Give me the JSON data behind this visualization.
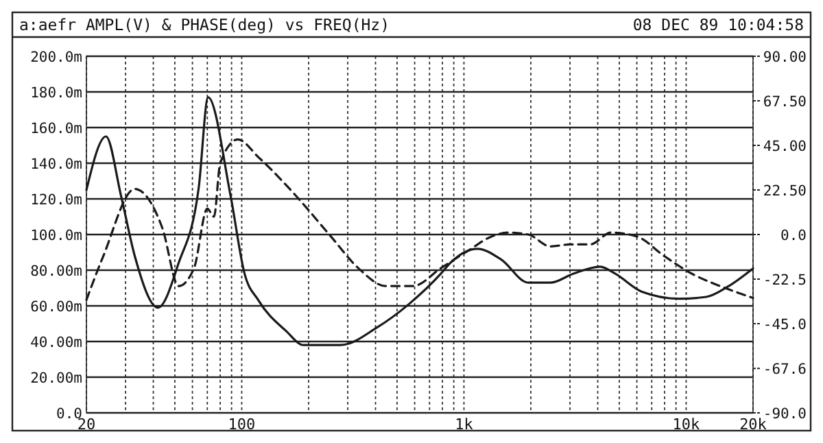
{
  "chart_data": {
    "type": "line",
    "title": "a:aefr AMPL(V) & PHASE(deg) vs FREQ(Hz)",
    "subtitle": "08 DEC 89 10:04:58",
    "log": "x",
    "grid": true,
    "marker": "none",
    "xlim": [
      20,
      20000
    ],
    "xticks": [
      {
        "value": 20,
        "label": "20"
      },
      {
        "value": 30,
        "label": null
      },
      {
        "value": 40,
        "label": null
      },
      {
        "value": 50,
        "label": null
      },
      {
        "value": 60,
        "label": null
      },
      {
        "value": 70,
        "label": null
      },
      {
        "value": 80,
        "label": null
      },
      {
        "value": 90,
        "label": null
      },
      100,
      {
        "value": 200,
        "label": null
      },
      {
        "value": 300,
        "label": null
      },
      {
        "value": 400,
        "label": null
      },
      {
        "value": 500,
        "label": null
      },
      {
        "value": 600,
        "label": null
      },
      {
        "value": 700,
        "label": null
      },
      {
        "value": 800,
        "label": null
      },
      {
        "value": 900,
        "label": null
      },
      {
        "value": 1000,
        "label": "1k"
      },
      {
        "value": 2000,
        "label": null
      },
      {
        "value": 3000,
        "label": null
      },
      {
        "value": 4000,
        "label": null
      },
      {
        "value": 5000,
        "label": null
      },
      {
        "value": 6000,
        "label": null
      },
      {
        "value": 7000,
        "label": null
      },
      {
        "value": 8000,
        "label": null
      },
      {
        "value": 9000,
        "label": null
      },
      {
        "value": 10000,
        "label": "10k"
      },
      {
        "value": 20000,
        "label": "20k"
      }
    ],
    "ylim": [
      0,
      200
    ],
    "yticks": [
      {
        "value": 0,
        "label": "0.0"
      },
      {
        "value": 20,
        "label": "20.00m"
      },
      {
        "value": 40,
        "label": "40.00m"
      },
      {
        "value": 60,
        "label": "60.00m"
      },
      {
        "value": 80,
        "label": "80.00m"
      },
      {
        "value": 100,
        "label": "100.0m"
      },
      {
        "value": 120,
        "label": "120.0m"
      },
      {
        "value": 140,
        "label": "140.0m"
      },
      {
        "value": 160,
        "label": "160.0m"
      },
      {
        "value": 180,
        "label": "180.0m"
      },
      {
        "value": 200,
        "label": "200.0m"
      }
    ],
    "y2lim": [
      -90,
      90
    ],
    "y2ticks": [
      {
        "value": -90,
        "label": "-90.0"
      },
      {
        "value": -67.6,
        "label": "-67.6"
      },
      {
        "value": -45,
        "label": "-45.0"
      },
      {
        "value": -22.5,
        "label": "-22.5"
      },
      {
        "value": 0,
        "label": "0.0"
      },
      {
        "value": 22.5,
        "label": "22.50"
      },
      {
        "value": 45,
        "label": "45.00"
      },
      {
        "value": 67.5,
        "label": "67.50"
      },
      {
        "value": 90,
        "label": "90.00"
      }
    ],
    "series": [
      {
        "color": "#1a1a1a",
        "line_style": "solid",
        "x": [
          20,
          24.5,
          28.6,
          33,
          42,
          52,
          64,
          70.6,
          89,
          103,
          119,
          158,
          190,
          278,
          408,
          566,
          787,
          867,
          1150,
          1470,
          1950,
          2450,
          3100,
          4100,
          4800,
          6300,
          9300,
          12300,
          15500,
          20000
        ],
        "values": [
          125,
          155,
          122,
          88,
          59,
          84,
          126,
          177,
          122,
          78,
          63,
          46,
          38,
          38,
          48,
          61,
          78,
          84,
          92,
          86,
          73,
          73,
          78,
          82,
          78,
          68,
          64,
          65,
          71,
          81
        ]
      },
      {
        "color": "#1a1a1a",
        "line_style": "dashed",
        "axis": "y2",
        "x": [
          20,
          23.8,
          33,
          44,
          52,
          61,
          70,
          75,
          80,
          96,
          119,
          174,
          252,
          335,
          445,
          590,
          787,
          1050,
          1330,
          1600,
          1950,
          2450,
          3000,
          3700,
          4600,
          6000,
          8000,
          10700,
          14200,
          20000
        ],
        "values": [
          -33,
          -11,
          23,
          3,
          -26,
          -17,
          13,
          9,
          36,
          48,
          39,
          20,
          -1,
          -17,
          -26,
          -26,
          -17,
          -8,
          -1,
          1,
          0,
          -6,
          -5,
          -5,
          1,
          -1,
          -11,
          -20,
          -26,
          -32
        ]
      }
    ]
  }
}
